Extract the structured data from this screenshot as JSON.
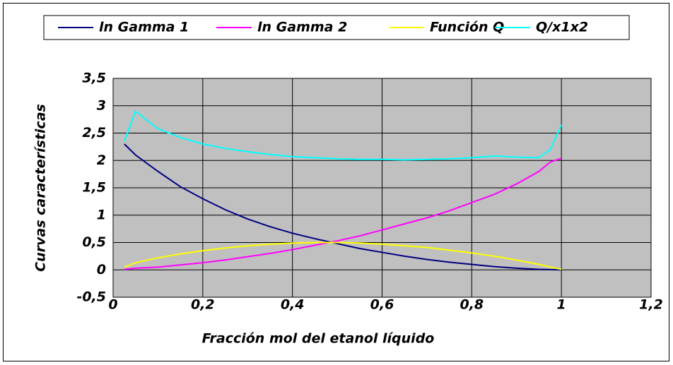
{
  "chart_data": {
    "type": "line",
    "x": [
      0.025,
      0.05,
      0.1,
      0.15,
      0.2,
      0.25,
      0.3,
      0.35,
      0.4,
      0.45,
      0.5,
      0.55,
      0.6,
      0.65,
      0.7,
      0.75,
      0.8,
      0.85,
      0.9,
      0.95,
      0.975,
      1
    ],
    "series": [
      {
        "name": "ln Gamma 1",
        "color": "#000080",
        "values": [
          2.3,
          2.1,
          1.8,
          1.52,
          1.3,
          1.1,
          0.93,
          0.79,
          0.67,
          0.57,
          0.48,
          0.39,
          0.32,
          0.25,
          0.19,
          0.14,
          0.1,
          0.06,
          0.03,
          0.01,
          0.005,
          0
        ]
      },
      {
        "name": "ln Gamma 2",
        "color": "#ff00ff",
        "values": [
          0.01,
          0.03,
          0.05,
          0.09,
          0.13,
          0.18,
          0.24,
          0.3,
          0.37,
          0.45,
          0.53,
          0.62,
          0.73,
          0.84,
          0.95,
          1.08,
          1.23,
          1.38,
          1.57,
          1.8,
          1.97,
          2.04
        ]
      },
      {
        "name": "Función Q",
        "color": "#ffff00",
        "values": [
          0.05,
          0.13,
          0.22,
          0.29,
          0.35,
          0.4,
          0.44,
          0.47,
          0.49,
          0.5,
          0.5,
          0.49,
          0.47,
          0.44,
          0.41,
          0.36,
          0.31,
          0.25,
          0.18,
          0.1,
          0.05,
          0.01
        ]
      },
      {
        "name": "Q/x1x2",
        "color": "#00ffff",
        "values": [
          2.35,
          2.9,
          2.58,
          2.42,
          2.3,
          2.22,
          2.16,
          2.11,
          2.07,
          2.05,
          2.03,
          2.02,
          2.02,
          2.01,
          2.02,
          2.03,
          2.05,
          2.08,
          2.06,
          2.05,
          2.2,
          2.65
        ]
      }
    ],
    "xlabel": "Fracción mol del etanol líquido",
    "ylabel": "Curvas características",
    "xlim": [
      0,
      1.2
    ],
    "xticks": [
      0,
      {
        "value": 0.2,
        "label": "0,2"
      },
      {
        "value": 0.4,
        "label": "0,4"
      },
      {
        "value": 0.6,
        "label": "0,6"
      },
      {
        "value": 0.8,
        "label": "0,8"
      },
      1,
      {
        "value": 1.2,
        "label": "1,2"
      }
    ],
    "ylim": [
      -0.5,
      3.5
    ],
    "yticks": [
      {
        "value": -0.5,
        "label": "-0,5"
      },
      0,
      {
        "value": 0.5,
        "label": "0,5"
      },
      1,
      {
        "value": 1.5,
        "label": "1,5"
      },
      2,
      {
        "value": 2.5,
        "label": "2,5"
      },
      3,
      {
        "value": 3.5,
        "label": "3,5"
      }
    ],
    "grid": true,
    "legend": "top"
  }
}
